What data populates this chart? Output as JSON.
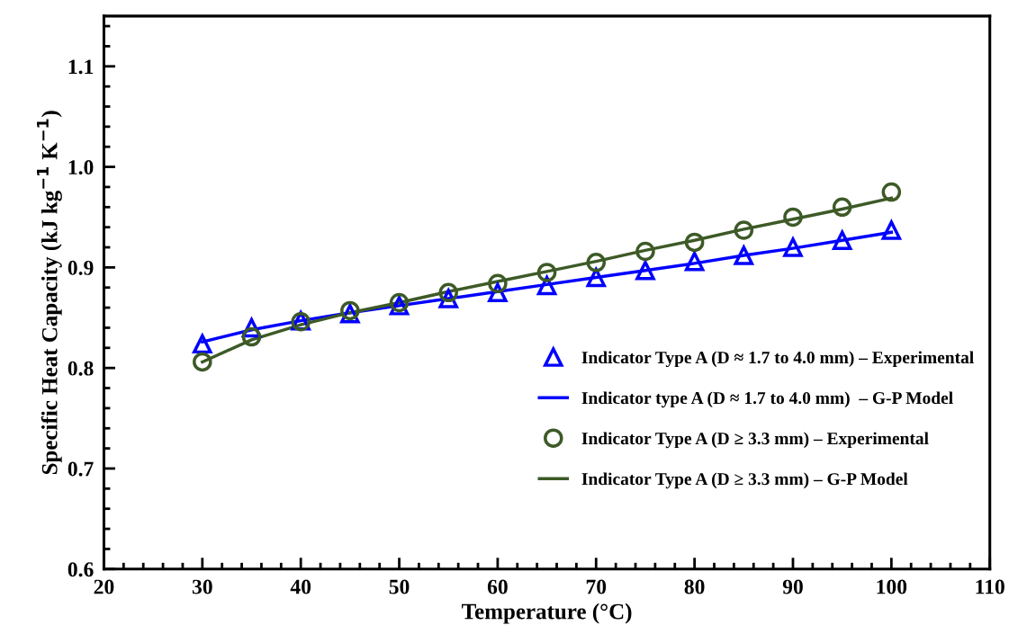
{
  "chart_data": {
    "type": "line",
    "xlabel": "Temperature (°C)",
    "ylabel": "Specific Heat Capacity (kJ kg$^{−1}$ K$^{−1}$)",
    "x": [
      30,
      35,
      40,
      45,
      50,
      55,
      60,
      65,
      70,
      75,
      80,
      85,
      90,
      95,
      100
    ],
    "xlim": [
      20,
      110
    ],
    "xticks": [
      20,
      30,
      40,
      50,
      60,
      70,
      80,
      90,
      100,
      110
    ],
    "ylim": [
      0.6,
      1.15
    ],
    "yticks": [
      0.6,
      0.7,
      0.8,
      0.9,
      {
        "value": 1.0,
        "label": "1.0"
      },
      1.1
    ],
    "grid": false,
    "legend": "right",
    "series": [
      {
        "name": "Indicator Type A (D ≈ 1.7 to 4.0 mm) – Experimental",
        "type": "scatter",
        "marker": "triangle",
        "color": "#0000ff",
        "values": [
          0.824,
          0.84,
          0.847,
          0.854,
          0.862,
          0.869,
          0.875,
          0.882,
          0.89,
          0.897,
          0.906,
          0.912,
          0.92,
          0.927,
          0.937
        ]
      },
      {
        "name": "Indicator type A (D ≈ 1.7 to 4.0 mm)  – G-P Model",
        "line_style": "solid",
        "color": "#0000ff",
        "values": [
          0.826,
          0.838,
          0.847,
          0.855,
          0.862,
          0.869,
          0.876,
          0.883,
          0.89,
          0.897,
          0.904,
          0.912,
          0.919,
          0.927,
          0.935
        ]
      },
      {
        "name": "Indicator Type A (D ≥ 3.3 mm) – Experimental",
        "type": "scatter",
        "marker": "circle",
        "color": "#3d5a27",
        "values": [
          0.806,
          0.831,
          0.846,
          0.857,
          0.865,
          0.875,
          0.884,
          0.895,
          0.905,
          0.916,
          0.925,
          0.937,
          0.95,
          0.96,
          0.975
        ]
      },
      {
        "name": "Indicator Type A (D ≥ 3.3 mm) – G-P Model",
        "line_style": "solid",
        "color": "#3d5a27",
        "values": [
          0.806,
          0.828,
          0.843,
          0.855,
          0.865,
          0.876,
          0.886,
          0.896,
          0.906,
          0.917,
          0.927,
          0.938,
          0.948,
          0.958,
          0.969
        ]
      }
    ]
  }
}
